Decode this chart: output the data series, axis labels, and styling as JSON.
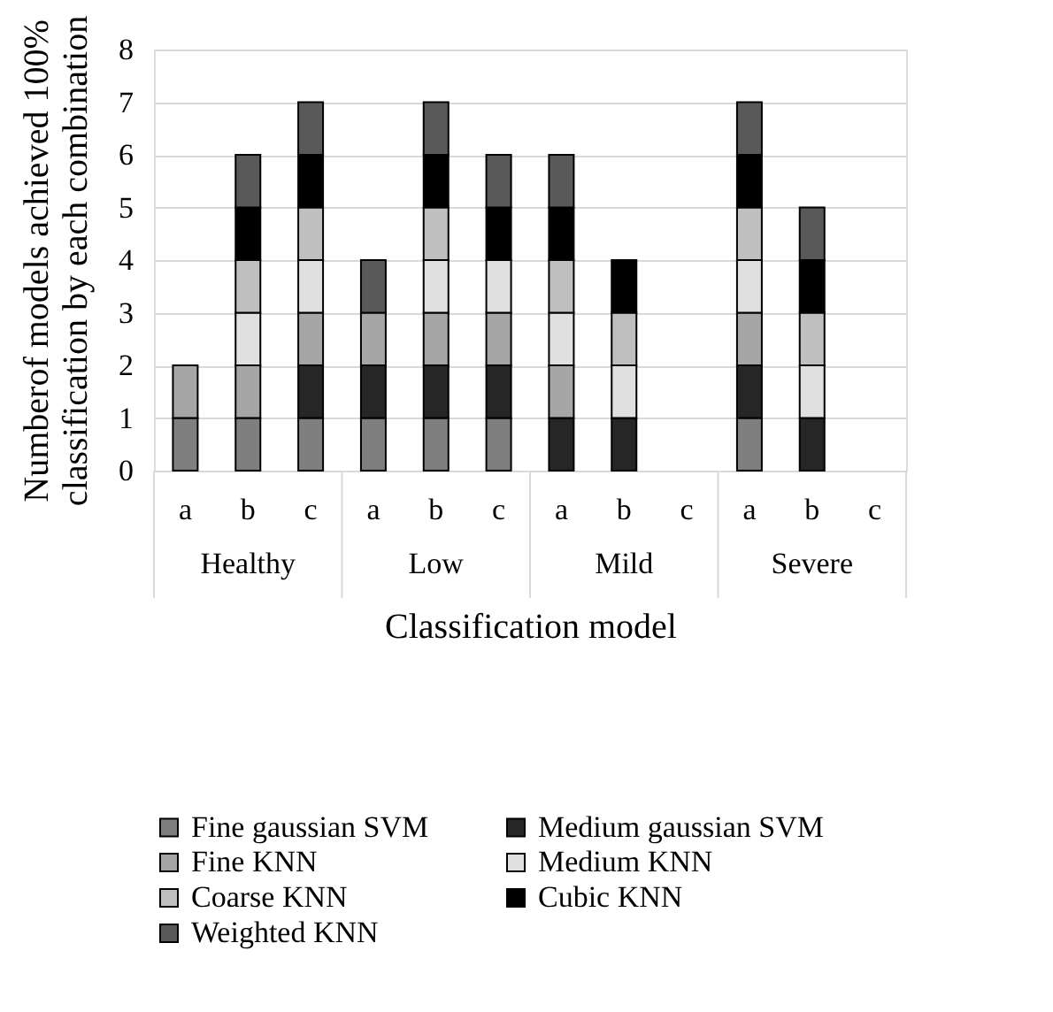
{
  "chart_data": {
    "type": "bar",
    "stacked": true,
    "xlabel": "Classification model",
    "ylabel": "Numberof models achieved 100%\nclassification by each combination",
    "categories": [
      "a",
      "b",
      "c",
      "a",
      "b",
      "c",
      "a",
      "b",
      "c",
      "a",
      "b",
      "c"
    ],
    "annotations": [
      "Healthy",
      "Low",
      "Mild",
      "Severe"
    ],
    "series": [
      {
        "name": "Fine gaussian SVM",
        "color": "#7f7f7f",
        "values": [
          1,
          1,
          1,
          1,
          1,
          1,
          0,
          0,
          0,
          1,
          0,
          0
        ]
      },
      {
        "name": "Medium gaussian SVM",
        "color": "#262626",
        "values": [
          0,
          0,
          1,
          1,
          1,
          1,
          1,
          1,
          0,
          1,
          1,
          0
        ]
      },
      {
        "name": "Fine KNN",
        "color": "#a6a6a6",
        "values": [
          1,
          1,
          1,
          1,
          1,
          1,
          1,
          0,
          0,
          1,
          0,
          0
        ]
      },
      {
        "name": "Medium KNN",
        "color": "#e0e0e0",
        "values": [
          0,
          1,
          1,
          0,
          1,
          1,
          1,
          1,
          0,
          1,
          1,
          0
        ]
      },
      {
        "name": "Coarse KNN",
        "color": "#bfbfbf",
        "values": [
          0,
          1,
          1,
          0,
          1,
          0,
          1,
          1,
          0,
          1,
          1,
          0
        ]
      },
      {
        "name": "Cubic KNN",
        "color": "#000000",
        "values": [
          0,
          1,
          1,
          0,
          1,
          1,
          1,
          1,
          0,
          1,
          1,
          0
        ]
      },
      {
        "name": "Weighted KNN",
        "color": "#595959",
        "values": [
          0,
          1,
          1,
          1,
          1,
          1,
          1,
          0,
          0,
          1,
          1,
          0
        ]
      }
    ],
    "ylim": [
      0,
      8
    ],
    "yticks": [
      0,
      1,
      2,
      3,
      4,
      5,
      6,
      7,
      8
    ],
    "grid": "y",
    "legend": "bottom"
  }
}
